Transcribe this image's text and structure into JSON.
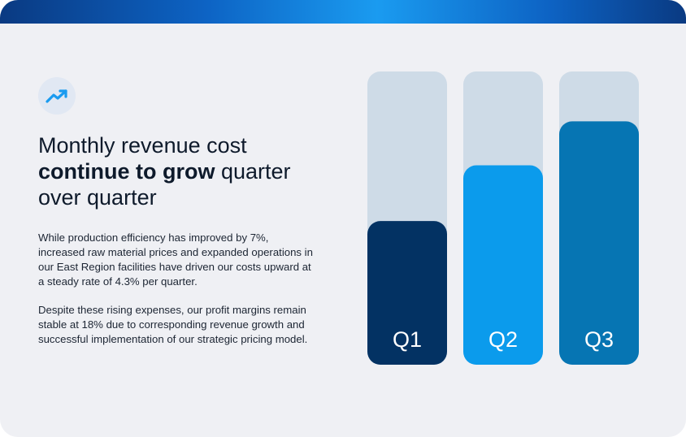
{
  "headline": {
    "line_a": "Monthly revenue cost",
    "bold": "continue to grow",
    "line_b_rest": " quarter",
    "line_c": "over quarter"
  },
  "paragraphs": [
    "While production efficiency has improved by 7%, increased raw material prices and expanded operations in our East Region facilities have driven our costs upward at a steady rate of 4.3% per quarter.",
    "Despite these rising expenses, our profit margins remain stable at 18% due to corresponding revenue growth and successful implementation of our strategic pricing model."
  ],
  "icons": {
    "trend": "trending-up-icon"
  },
  "colors": {
    "accent": "#1a9bf0",
    "track": "#cedbe7",
    "text": "#0e1a2b"
  },
  "chart_data": {
    "type": "bar",
    "categories": [
      "Q1",
      "Q2",
      "Q3"
    ],
    "values": [
      0.49,
      0.68,
      0.83
    ],
    "ylim": [
      0,
      1
    ],
    "colors": [
      "#033263",
      "#0b9bec",
      "#0675b3"
    ],
    "grid": false
  }
}
